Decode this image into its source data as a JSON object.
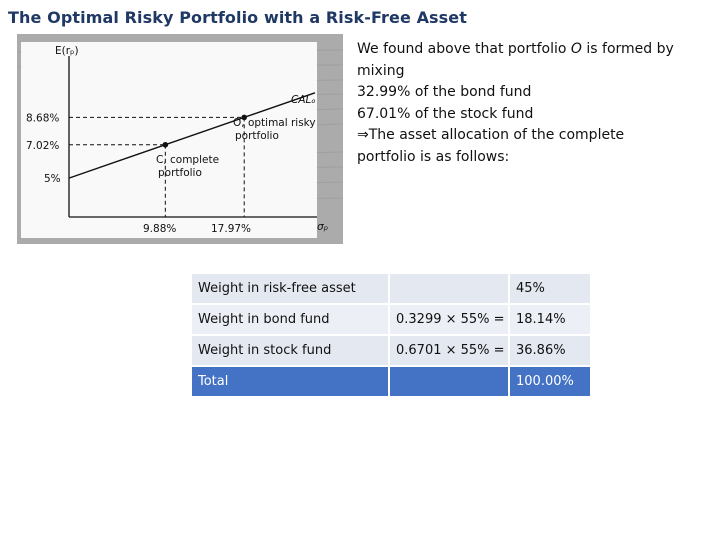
{
  "title": "The Optimal Risky Portfolio with a Risk-Free Asset",
  "figure": {
    "y_axis_label": "E(rₚ)",
    "x_axis_label": "σₚ",
    "line_label": "CALₒ",
    "y_ticks": [
      "8.68%",
      "7.02%",
      "5%"
    ],
    "x_ticks": [
      "9.88%",
      "17.97%"
    ],
    "point_o_label_1": "O, optimal risky",
    "point_o_label_2": "portfolio",
    "point_c_label_1": "C, complete",
    "point_c_label_2": "portfolio",
    "points": {
      "O": {
        "sigma": 17.97,
        "return": 8.68
      },
      "C": {
        "sigma": 9.88,
        "return": 7.02
      },
      "rf": {
        "sigma": 0,
        "return": 5
      }
    }
  },
  "description": {
    "line1_pre": "We found above that portfolio ",
    "line1_italic": "O",
    "line1_post": " is formed by",
    "line2": "mixing",
    "line3": "32.99% of the bond fund",
    "line4": "67.01% of the stock fund",
    "line5": "⇒The asset allocation of the complete",
    "line6": "portfolio is as follows:"
  },
  "table": {
    "rows": [
      {
        "label": "Weight in risk-free asset",
        "calc": "",
        "value": "45%"
      },
      {
        "label": "Weight in bond fund",
        "calc": "0.3299 × 55% =",
        "value": "18.14%"
      },
      {
        "label": "Weight in stock fund",
        "calc": "0.6701 × 55% =",
        "value": "36.86%"
      },
      {
        "label": "Total",
        "calc": "",
        "value": "100.00%"
      }
    ]
  }
}
